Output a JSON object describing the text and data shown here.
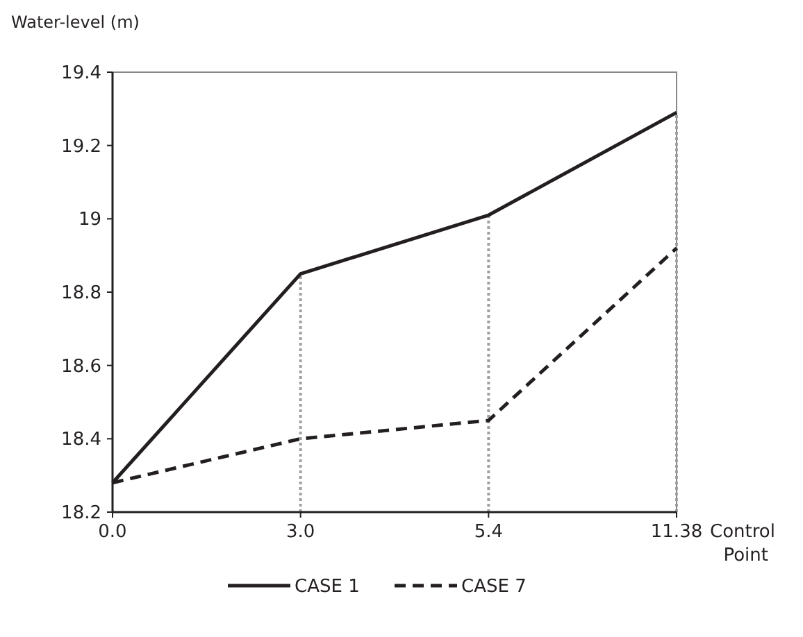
{
  "chart_data": {
    "type": "line",
    "ylabel": "Water-level (m)",
    "xlabel": "Control Point",
    "categories": [
      "0.0",
      "3.0",
      "5.4",
      "11.38"
    ],
    "series": [
      {
        "name": "CASE 1",
        "color": "#231f20",
        "values": [
          18.28,
          18.85,
          19.01,
          19.29
        ],
        "line_style": "solid"
      },
      {
        "name": "CASE 7",
        "color": "#231f20",
        "values": [
          18.28,
          18.4,
          18.45,
          18.92
        ],
        "line_style": "dashed"
      }
    ],
    "ylim": [
      18.2,
      19.4
    ],
    "yticks": [
      18.2,
      18.4,
      18.6,
      18.8,
      19,
      19.2,
      19.4
    ],
    "ref_lines": [
      {
        "axis": "x",
        "value": "3.0",
        "color": "#a0a0a0",
        "line_style": "dotted"
      },
      {
        "axis": "x",
        "value": "5.4",
        "color": "#a0a0a0",
        "line_style": "dotted"
      },
      {
        "axis": "x",
        "value": "11.38",
        "color": "#a0a0a0",
        "line_style": "dotted"
      }
    ],
    "grid": false,
    "legend": "bottom",
    "marker": "none"
  }
}
